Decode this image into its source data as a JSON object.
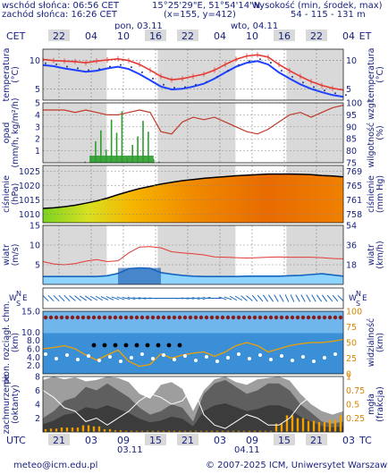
{
  "header": {
    "sunrise": "wschód słońca: 06:56 CET",
    "sunset": "zachód słońca: 16:26 CET",
    "coords": "15°25'29\"E, 51°54'14\"N",
    "grid": "(x=155, y=412)",
    "elevation_label": "wysokość (min, środek, max)",
    "elevation_values": "54 - 115 - 131 m"
  },
  "footer": {
    "email": "meteo@icm.edu.pl",
    "copyright": "© 2007-2025 ICM, Uniwersytet Warszawski"
  },
  "timeline": {
    "top_tz": "CET",
    "bottom_tz": "UTC",
    "day1_top": "pon, 03.11",
    "day2_top": "wto, 04.11",
    "day1_bottom": "03.11",
    "day2_bottom": "04.11",
    "top_hours": [
      "22",
      "04",
      "10",
      "16",
      "22",
      "04",
      "10",
      "16",
      "22",
      "04"
    ],
    "bottom_hours": [
      "21",
      "03",
      "09",
      "15",
      "21",
      "03",
      "09",
      "15",
      "21",
      "03"
    ]
  },
  "colors": {
    "axis": "#1a237e",
    "night": "#d9d9d9",
    "temp_red": "#e53935",
    "temp_blue": "#1e40ff",
    "precip_green": "#2e9d2e",
    "humidity": "#c0392b",
    "wind_blue": "#1565c0",
    "cloud_grey": "#5f5f5f",
    "fog_orange": "#f0a000"
  },
  "chart_data": [
    {
      "type": "line",
      "panel": "temperature",
      "ylabel_left": "temperatura",
      "unit_left": "(°C)",
      "ylabel_right": "temperatura",
      "unit_right": "(°C)",
      "yticks": [
        "5",
        "10"
      ],
      "ylim": [
        3,
        12
      ],
      "series": [
        {
          "values": [
            10.2,
            10.0,
            9.9,
            9.8,
            9.6,
            9.9,
            10.1,
            10.3,
            10.0,
            9.3,
            8.3,
            7.2,
            6.6,
            6.8,
            7.2,
            7.6,
            8.3,
            9.3,
            10.2,
            10.8,
            11.0,
            10.6,
            9.3,
            8.2,
            7.2,
            6.3,
            5.6,
            5.1,
            4.8
          ]
        },
        {
          "values": [
            9.2,
            9.0,
            8.6,
            8.3,
            8.0,
            8.2,
            8.6,
            8.9,
            8.5,
            7.6,
            6.5,
            5.4,
            4.9,
            5.0,
            5.4,
            5.9,
            6.8,
            7.9,
            8.9,
            9.6,
            9.9,
            9.3,
            7.9,
            6.8,
            5.8,
            5.0,
            4.4,
            3.9,
            3.6
          ]
        }
      ]
    },
    {
      "type": "bar",
      "panel": "precipitation",
      "ylabel_left": "opad",
      "unit_left": "(mm/h, kg/m²/h)",
      "ylabel_right": "wilgotność wzgl.",
      "unit_right": "(%)",
      "yticks_left": [
        "1",
        "2",
        "3",
        "4",
        "5"
      ],
      "yticks_right": [
        "75",
        "80",
        "85",
        "90",
        "95",
        "100"
      ],
      "ylim": [
        0,
        5
      ],
      "ylim_right": [
        75,
        100
      ],
      "precip": [
        0,
        0,
        0,
        0,
        0,
        0,
        0,
        0,
        0.1,
        0.6,
        1.8,
        2.7,
        1.1,
        3.6,
        2.5,
        4.3,
        0.4,
        1.5,
        2.2,
        3.5,
        2.6,
        0.3,
        0.1,
        0,
        0,
        0,
        0,
        0,
        0,
        0,
        0,
        0,
        0,
        0,
        0,
        0,
        0,
        0,
        0,
        0,
        0,
        0,
        0,
        0,
        0,
        0,
        0,
        0,
        0,
        0,
        0,
        0,
        0,
        0,
        0,
        0,
        0,
        0
      ],
      "humidity": [
        97,
        97,
        97,
        96,
        97,
        96,
        95,
        95,
        96,
        97,
        96,
        88,
        87,
        92,
        94,
        93,
        94,
        92,
        90,
        88,
        87,
        89,
        92,
        95,
        96,
        94,
        96,
        98,
        99
      ]
    },
    {
      "type": "area",
      "panel": "pressure",
      "ylabel_left": "ciśnienie",
      "unit_left": "(hPa)",
      "ylabel_right": "ciśnienie",
      "unit_right": "(mm Hg)",
      "yticks_left": [
        "1010",
        "1015",
        "1020",
        "1025"
      ],
      "yticks_right": [
        "758",
        "761",
        "765",
        "769"
      ],
      "ylim": [
        1007,
        1027
      ],
      "values": [
        1012.0,
        1012.2,
        1012.6,
        1013.1,
        1013.8,
        1014.6,
        1015.6,
        1016.8,
        1017.9,
        1018.9,
        1019.7,
        1020.5,
        1021.1,
        1021.7,
        1022.1,
        1022.5,
        1022.8,
        1023.1,
        1023.4,
        1023.6,
        1023.8,
        1024.0,
        1024.0,
        1024.0,
        1023.9,
        1023.8,
        1023.5,
        1023.3,
        1023.0
      ]
    },
    {
      "type": "line",
      "panel": "wind",
      "ylabel_left": "wiatr",
      "unit_left": "(m/s)",
      "ylabel_right": "wiatr",
      "unit_right": "(km/h)",
      "yticks_left": [
        "5",
        "10",
        "15"
      ],
      "yticks_right": [
        "18",
        "36",
        "54"
      ],
      "ylim": [
        0,
        15
      ],
      "series": [
        {
          "values": [
            5.8,
            5.2,
            5.0,
            5.3,
            5.9,
            6.3,
            5.8,
            6.0,
            8.0,
            9.5,
            9.6,
            9.3,
            8.3,
            8.0,
            7.8,
            7.5,
            7.0,
            6.9,
            6.8,
            6.7,
            6.8,
            6.9,
            7.0,
            6.9,
            6.9,
            6.9,
            6.8,
            6.6,
            6.5
          ]
        },
        {
          "values": [
            2.0,
            2.0,
            2.0,
            2.0,
            2.0,
            2.0,
            2.2,
            2.8,
            4.0,
            4.2,
            4.1,
            3.0,
            2.6,
            2.3,
            2.1,
            2.0,
            2.0,
            2.0,
            2.0,
            2.1,
            2.1,
            2.1,
            2.1,
            2.2,
            2.3,
            2.5,
            2.7,
            2.4,
            2.1
          ]
        }
      ]
    },
    {
      "type": "scatter",
      "panel": "wind-direction",
      "ylabel_left": "W S N E",
      "ylabel_right": "W S N E",
      "directions_deg": [
        225,
        225,
        225,
        230,
        235,
        240,
        245,
        250,
        255,
        260,
        265,
        270,
        270,
        275,
        280,
        285,
        270,
        250,
        240,
        230,
        220,
        215,
        210,
        205,
        210,
        210,
        215,
        220,
        225
      ]
    },
    {
      "type": "scatter",
      "panel": "clouds",
      "ylabel_left": "pion. rozciągł. chm.",
      "unit_left": "(km)",
      "ylabel_right": "widzialność",
      "unit_right": "(km)",
      "yticks_left": [
        "2.0",
        "4.0",
        "6.0",
        "8.0",
        "10.0",
        "15.0"
      ],
      "yticks_right": [
        "0",
        "25",
        "50",
        "75",
        "100"
      ],
      "ylim": [
        0,
        15
      ],
      "visibility_km": [
        40,
        42,
        45,
        40,
        30,
        22,
        30,
        38,
        20,
        12,
        15,
        32,
        25,
        30,
        33,
        35,
        28,
        35,
        45,
        50,
        45,
        35,
        40,
        45,
        48,
        50,
        50,
        52,
        55
      ]
    },
    {
      "type": "area",
      "panel": "cloud-cover",
      "ylabel_left": "zachmurzenie",
      "unit_left": "(oktanty)",
      "ylabel_right": "mgła",
      "unit_right": "(frakcja)",
      "yticks_left": [
        "2",
        "4",
        "6",
        "8"
      ],
      "yticks_right": [
        "0.25",
        "0.5",
        "0.75",
        "1"
      ],
      "ylim": [
        0,
        8
      ],
      "total": [
        7.5,
        8,
        7.6,
        7.9,
        7.3,
        7.5,
        8,
        7.8,
        7.2,
        5.5,
        4.8,
        6.8,
        7.2,
        6.2,
        3.0,
        6.0,
        7.6,
        8,
        7.2,
        6.8,
        7.6,
        7.8,
        8,
        7.4,
        5.5,
        4.0,
        3.0,
        2.5,
        3.0
      ],
      "low": [
        2,
        3,
        4.5,
        5,
        6.5,
        6,
        7,
        6,
        5,
        3.5,
        2.5,
        3,
        4,
        3.5,
        1.5,
        5.5,
        7,
        7.5,
        6.5,
        5.5,
        6,
        7,
        7,
        6,
        4,
        2.8,
        1.5,
        1.2,
        1.5
      ],
      "fog": [
        0.05,
        0.06,
        0.08,
        0.08,
        0.12,
        0.1,
        0.05,
        0.03,
        0.02,
        0.02,
        0.02,
        0.02,
        0.02,
        0.02,
        0.02,
        0.02,
        0.02,
        0.02,
        0.02,
        0.02,
        0.02,
        0.02,
        0.15,
        0.3,
        0.25,
        0.2,
        0.18,
        0.22,
        0.3
      ]
    }
  ]
}
